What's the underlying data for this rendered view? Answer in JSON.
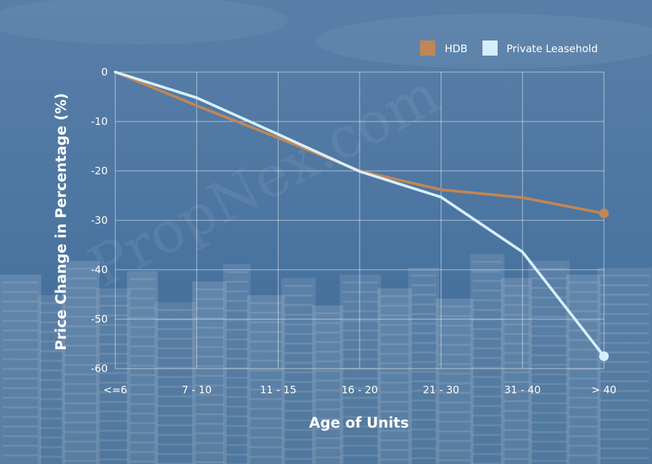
{
  "chart_data": {
    "type": "line",
    "categories": [
      "<=6",
      "7 - 10",
      "11 - 15",
      "16 - 20",
      "21 - 30",
      "31 - 40",
      "> 40"
    ],
    "series": [
      {
        "name": "HDB",
        "color": "#c08656",
        "values": [
          0,
          -6.8,
          -13.3,
          -20.0,
          -23.8,
          -25.4,
          -28.6
        ]
      },
      {
        "name": "Private Leasehold",
        "color": "#d6efff",
        "values": [
          0,
          -5.2,
          -12.6,
          -20.1,
          -25.3,
          -36.4,
          -57.5
        ]
      }
    ],
    "xlabel": "Age of Units",
    "ylabel": "Price Change in Percentage (%)",
    "ylim": [
      -60,
      0
    ],
    "yticks": [
      0,
      -10,
      -20,
      -30,
      -40,
      -50,
      -60
    ],
    "grid": true,
    "legend_position": "top-right"
  },
  "watermark": "PropNex.com"
}
